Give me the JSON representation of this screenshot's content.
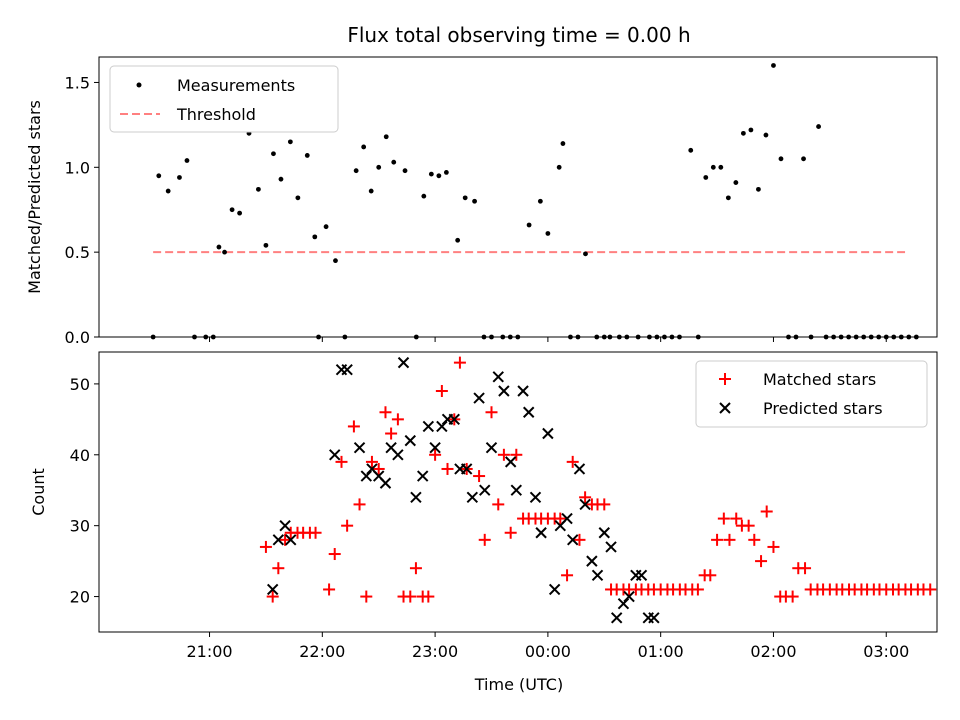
{
  "chart_data": [
    {
      "type": "scatter",
      "title": "Flux total observing time = 0.00 h",
      "xlabel": "",
      "ylabel": "Matched/Predicted stars",
      "ylim": [
        0,
        1.65
      ],
      "yticks": [
        "0.0",
        "0.5",
        "1.0",
        "1.5"
      ],
      "legend": {
        "position": "top-left",
        "entries": [
          "Measurements",
          "Threshold"
        ]
      },
      "series": [
        {
          "name": "Measurements",
          "color": "#000000",
          "marker": "dot",
          "x": [
            "20:30",
            "20:33",
            "20:38",
            "20:44",
            "20:48",
            "20:52",
            "20:58",
            "21:02",
            "21:05",
            "21:08",
            "21:12",
            "21:16",
            "21:21",
            "21:26",
            "21:30",
            "21:34",
            "21:38",
            "21:43",
            "21:47",
            "21:52",
            "21:56",
            "21:58",
            "22:02",
            "22:07",
            "22:12",
            "22:18",
            "22:22",
            "22:26",
            "22:30",
            "22:34",
            "22:38",
            "22:44",
            "22:50",
            "22:54",
            "22:58",
            "23:02",
            "23:06",
            "23:12",
            "23:16",
            "23:21",
            "23:26",
            "23:30",
            "23:36",
            "23:40",
            "23:44",
            "23:50",
            "23:56",
            "23:60",
            "00:06",
            "00:08",
            "00:12",
            "00:16",
            "00:20",
            "00:26",
            "00:30",
            "00:33",
            "00:38",
            "00:42",
            "00:48",
            "00:54",
            "00:58",
            "01:02",
            "01:06",
            "01:10",
            "01:16",
            "01:20",
            "01:24",
            "01:28",
            "01:32",
            "01:36",
            "01:40",
            "01:44",
            "01:48",
            "01:52",
            "01:56",
            "02:00",
            "02:04",
            "02:08",
            "02:12",
            "02:16",
            "02:20",
            "02:24",
            "02:28",
            "02:32",
            "02:36",
            "02:40",
            "02:44",
            "02:48",
            "02:52",
            "02:56",
            "03:00",
            "03:04",
            "03:08",
            "03:12",
            "03:16"
          ],
          "y": [
            0.0,
            0.95,
            0.86,
            0.94,
            1.04,
            0.0,
            0.0,
            0.0,
            0.53,
            0.5,
            0.75,
            0.73,
            1.2,
            0.87,
            0.54,
            1.08,
            0.93,
            1.15,
            0.82,
            1.07,
            0.59,
            0.0,
            0.65,
            0.45,
            0.0,
            0.98,
            1.12,
            0.86,
            1.0,
            1.18,
            1.03,
            0.98,
            0.0,
            0.83,
            0.96,
            0.95,
            0.97,
            0.57,
            0.82,
            0.8,
            0.0,
            0.0,
            0.0,
            0.0,
            0.0,
            0.66,
            0.8,
            0.61,
            1.0,
            1.14,
            0.0,
            0.0,
            0.49,
            0.0,
            0.0,
            0.0,
            0.0,
            0.0,
            0.0,
            0.0,
            0.0,
            0.0,
            0.0,
            0.0,
            1.1,
            0.0,
            0.94,
            1.0,
            1.0,
            0.82,
            0.91,
            1.2,
            1.22,
            0.87,
            1.19,
            1.6,
            1.05,
            0.0,
            0.0,
            1.05,
            0.0,
            1.24,
            0.0,
            0.0,
            0.0,
            0.0,
            0.0,
            0.0,
            0.0,
            0.0,
            0.0,
            0.0,
            0.0,
            0.0,
            0.0
          ]
        },
        {
          "name": "Threshold",
          "color": "#ff8080",
          "style": "dashed",
          "x": [
            "20:30",
            "03:10"
          ],
          "y": [
            0.5,
            0.5
          ]
        }
      ]
    },
    {
      "type": "scatter",
      "title": "",
      "xlabel": "Time (UTC)",
      "ylabel": "Count",
      "ylim": [
        15,
        54.5
      ],
      "yticks": [
        "20",
        "30",
        "40",
        "50"
      ],
      "xticks": [
        "21:00",
        "22:00",
        "23:00",
        "00:00",
        "01:00",
        "02:00",
        "03:00"
      ],
      "legend": {
        "position": "top-right",
        "entries": [
          "Matched stars",
          "Predicted stars"
        ]
      },
      "series": [
        {
          "name": "Matched stars",
          "color": "#ff0000",
          "marker": "plus",
          "x": [
            -0.5,
            -0.44,
            -0.39,
            -0.33,
            -0.28,
            -0.22,
            -0.17,
            -0.11,
            -0.06,
            0.06,
            0.11,
            0.17,
            0.22,
            0.28,
            0.33,
            0.39,
            0.44,
            0.5,
            0.56,
            0.61,
            0.67,
            0.72,
            0.78,
            0.83,
            0.89,
            0.94,
            1.0,
            1.06,
            1.11,
            1.17,
            1.22,
            1.28,
            1.39,
            1.44,
            1.5,
            1.56,
            1.61,
            1.67,
            1.72,
            1.78,
            1.83,
            1.89,
            1.94,
            2.0,
            2.06,
            2.11,
            2.17,
            2.22,
            2.28,
            2.33,
            2.39,
            2.44,
            2.5,
            2.56,
            2.61,
            2.67,
            2.72,
            2.78,
            2.83,
            2.89,
            2.94,
            3.0,
            3.06,
            3.11,
            3.17,
            3.22,
            3.28,
            3.33,
            3.39,
            3.44,
            3.5,
            3.56,
            3.61,
            3.67,
            3.72,
            3.78,
            3.83,
            3.89,
            3.94,
            4.0,
            4.06,
            4.11,
            4.17,
            4.22,
            4.28,
            4.33,
            4.39,
            4.44,
            4.5,
            4.56,
            4.61,
            4.67,
            4.72,
            4.78,
            4.83,
            4.89,
            4.94,
            5.0,
            5.06,
            5.11,
            5.17,
            5.22,
            5.28,
            5.33,
            5.39,
            5.44,
            5.5,
            5.56,
            5.61,
            5.67,
            5.72,
            5.78,
            5.83,
            5.89,
            5.94,
            6.0,
            6.06,
            6.11,
            6.17
          ],
          "y": [
            27,
            20,
            24,
            28,
            29,
            29,
            29,
            29,
            29,
            21,
            26,
            39,
            30,
            44,
            33,
            20,
            39,
            38,
            46,
            43,
            45,
            20,
            20,
            24,
            20,
            20,
            40,
            49,
            38,
            45,
            53,
            38,
            37,
            28,
            46,
            33,
            40,
            29,
            40,
            31,
            31,
            31,
            31,
            31,
            31,
            31,
            23,
            39,
            28,
            34,
            33,
            33,
            33,
            21,
            21,
            21,
            21,
            21,
            21,
            21,
            21,
            21,
            21,
            21,
            21,
            21,
            21,
            21,
            23,
            23,
            28,
            31,
            28,
            31,
            30,
            30,
            28,
            25,
            32,
            27,
            20,
            20,
            20,
            24,
            24,
            21,
            21,
            21,
            21,
            21,
            21,
            21,
            21,
            21,
            21,
            21,
            21,
            21,
            21,
            21,
            21,
            21,
            21,
            21,
            21,
            21,
            21,
            21,
            21,
            21,
            21,
            21,
            21,
            21,
            21,
            21,
            21,
            21,
            21
          ]
        },
        {
          "name": "Predicted stars",
          "color": "#000000",
          "marker": "x",
          "x": [
            -0.44,
            -0.39,
            -0.33,
            -0.28,
            0.11,
            0.17,
            0.22,
            0.33,
            0.39,
            0.44,
            0.5,
            0.56,
            0.61,
            0.67,
            0.72,
            0.78,
            0.83,
            0.89,
            0.94,
            1.0,
            1.06,
            1.11,
            1.17,
            1.22,
            1.28,
            1.33,
            1.39,
            1.44,
            1.5,
            1.56,
            1.61,
            1.67,
            1.72,
            1.78,
            1.83,
            1.89,
            1.94,
            2.0,
            2.06,
            2.11,
            2.17,
            2.22,
            2.28,
            2.33,
            2.39,
            2.44,
            2.5,
            2.56,
            2.61,
            2.67,
            2.72,
            2.78,
            2.83,
            2.89,
            2.94
          ],
          "y": [
            21,
            28,
            30,
            28,
            40,
            52,
            52,
            41,
            37,
            38,
            37,
            36,
            41,
            40,
            53,
            42,
            34,
            37,
            44,
            41,
            44,
            45,
            45,
            38,
            38,
            34,
            48,
            35,
            41,
            51,
            49,
            39,
            35,
            49,
            46,
            34,
            29,
            43,
            21,
            30,
            31,
            28,
            38,
            33,
            25,
            23,
            29,
            27,
            17,
            19,
            20,
            23,
            23,
            17,
            17
          ]
        }
      ]
    }
  ]
}
